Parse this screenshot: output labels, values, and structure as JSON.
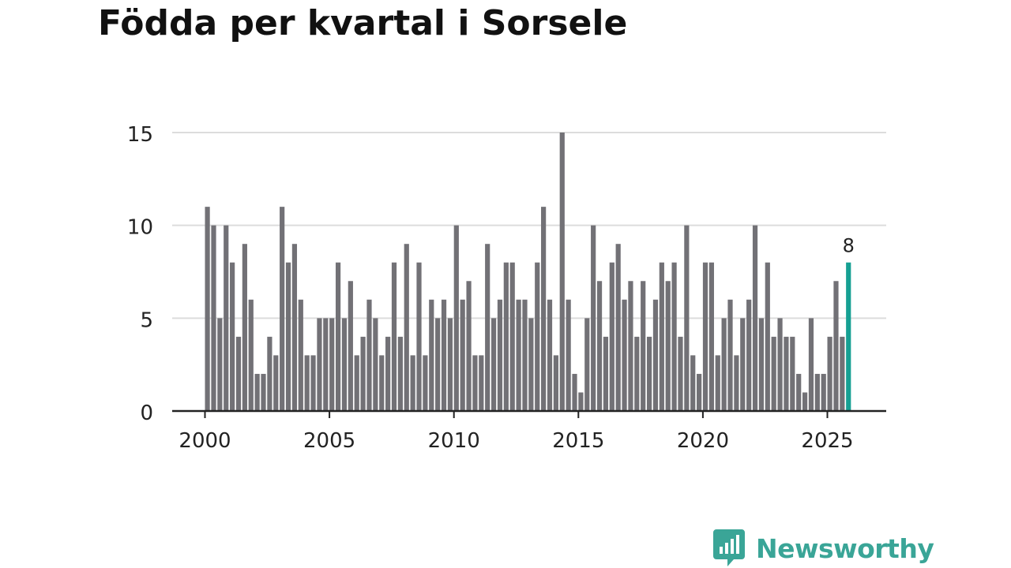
{
  "chart_data": {
    "type": "bar",
    "title": "Födda per kvartal i Sorsele",
    "xlabel": "",
    "ylabel": "",
    "ylim": [
      0,
      15
    ],
    "yticks": [
      "0",
      "5",
      "10",
      "15"
    ],
    "xticks": [
      "2000",
      "2005",
      "2010",
      "2015",
      "2020",
      "2025"
    ],
    "grid": true,
    "start_year": 2000,
    "values": [
      11,
      10,
      5,
      10,
      8,
      4,
      9,
      6,
      2,
      2,
      4,
      3,
      11,
      8,
      9,
      6,
      3,
      3,
      5,
      5,
      5,
      8,
      5,
      7,
      3,
      4,
      6,
      5,
      3,
      4,
      8,
      4,
      9,
      3,
      8,
      3,
      6,
      5,
      6,
      5,
      10,
      6,
      7,
      3,
      3,
      9,
      5,
      6,
      8,
      8,
      6,
      6,
      5,
      8,
      11,
      6,
      3,
      15,
      6,
      2,
      1,
      5,
      10,
      7,
      4,
      8,
      9,
      6,
      7,
      4,
      7,
      4,
      6,
      8,
      7,
      8,
      4,
      10,
      3,
      2,
      8,
      8,
      3,
      5,
      6,
      3,
      5,
      6,
      10,
      5,
      8,
      4,
      5,
      4,
      4,
      2,
      1,
      5,
      2,
      2,
      4,
      7,
      4,
      8
    ],
    "highlight_index": 103,
    "highlight_label": "8",
    "colors": {
      "bar": "#727176",
      "highlight": "#16a093",
      "grid": "#dcdcdc",
      "axis": "#222222",
      "text": "#222222"
    }
  },
  "branding": {
    "name": "Newsworthy",
    "color": "#3aa597"
  }
}
